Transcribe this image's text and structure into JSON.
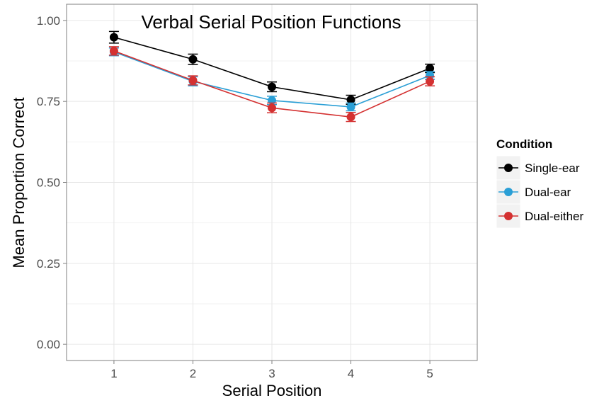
{
  "chart_data": {
    "type": "line",
    "title": "Verbal Serial Position Functions",
    "xlabel": "Serial Position",
    "ylabel": "Mean Proportion Correct",
    "x": [
      1,
      2,
      3,
      4,
      5
    ],
    "x_tick_labels": [
      "1",
      "2",
      "3",
      "4",
      "5"
    ],
    "xlim": [
      0.4,
      5.6
    ],
    "ylim": [
      -0.05,
      1.05
    ],
    "y_ticks": [
      0.0,
      0.25,
      0.5,
      0.75,
      1.0
    ],
    "y_tick_labels": [
      "0.00",
      "0.25",
      "0.50",
      "0.75",
      "1.00"
    ],
    "grid": true,
    "error_bars": true,
    "legend": {
      "title": "Condition",
      "placement": "right"
    },
    "series": [
      {
        "name": "Single-ear",
        "color": "#000000",
        "values": [
          0.948,
          0.88,
          0.795,
          0.755,
          0.852
        ],
        "errors": [
          0.018,
          0.016,
          0.015,
          0.014,
          0.013
        ]
      },
      {
        "name": "Dual-ear",
        "color": "#2a9fd6",
        "values": [
          0.903,
          0.812,
          0.753,
          0.733,
          0.83
        ],
        "errors": [
          0.012,
          0.014,
          0.013,
          0.012,
          0.012
        ]
      },
      {
        "name": "Dual-either",
        "color": "#d43131",
        "values": [
          0.906,
          0.815,
          0.73,
          0.702,
          0.812
        ],
        "errors": [
          0.013,
          0.014,
          0.015,
          0.014,
          0.014
        ]
      }
    ]
  }
}
